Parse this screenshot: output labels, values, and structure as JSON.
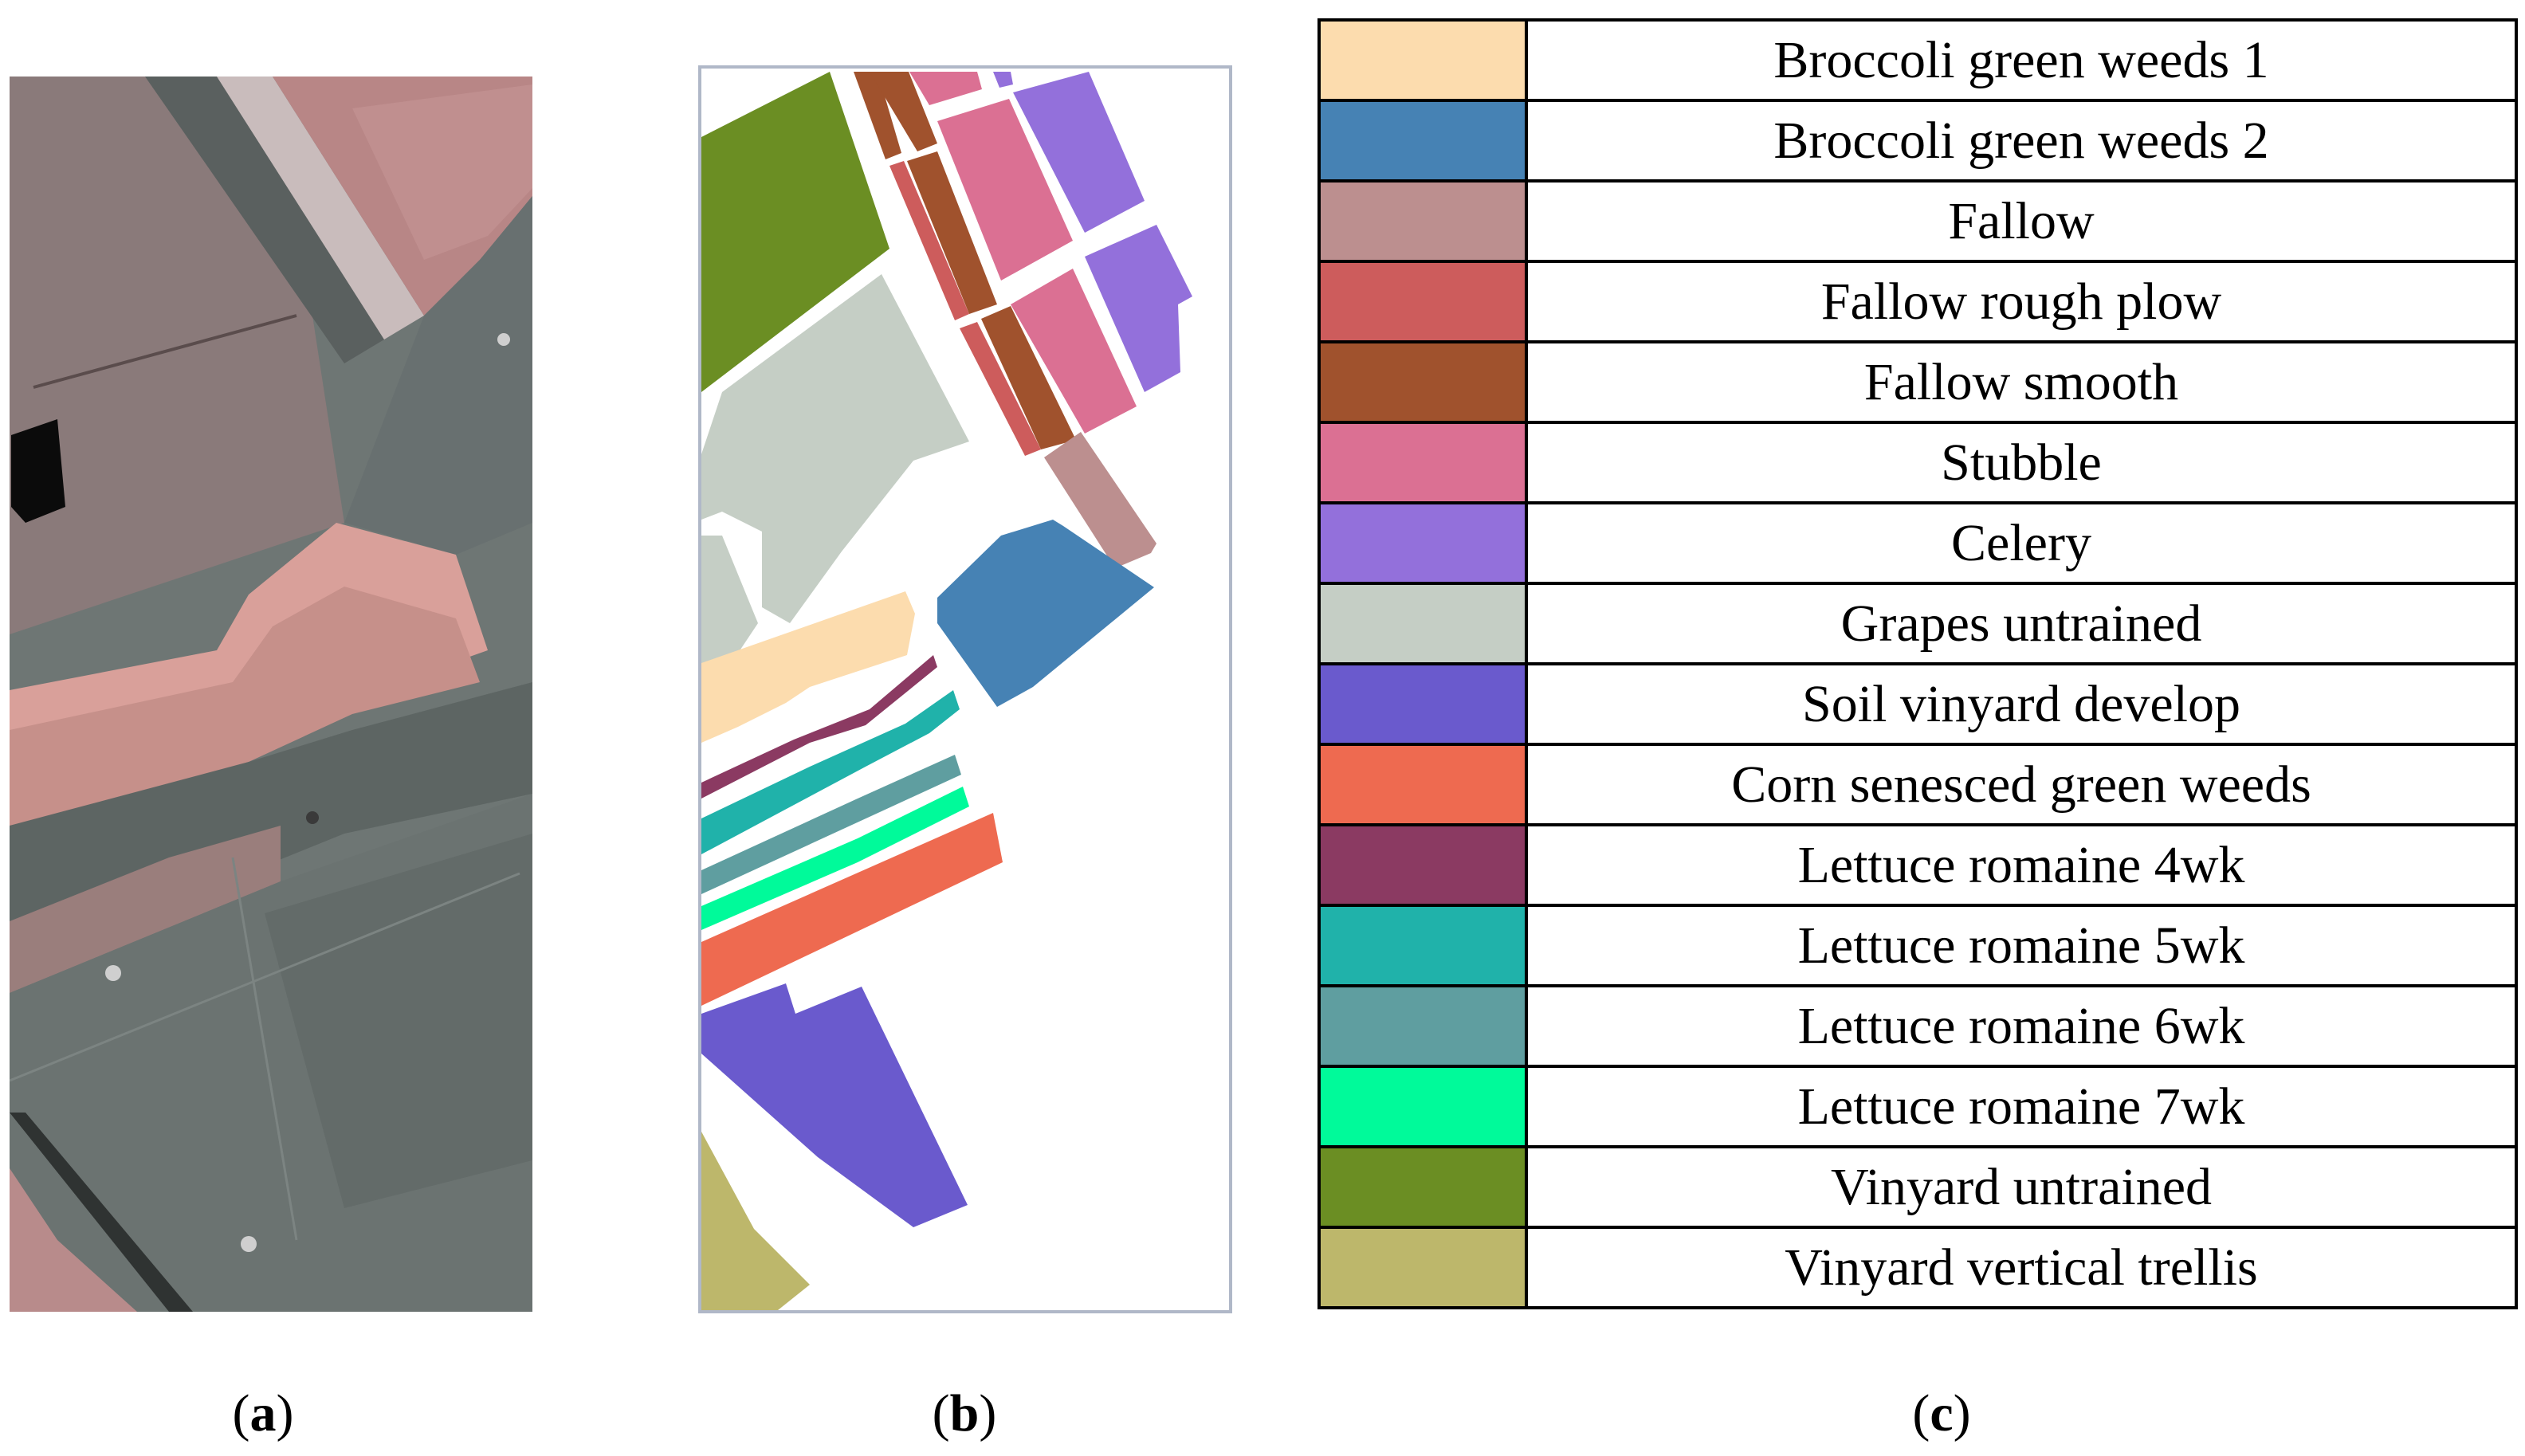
{
  "captions": {
    "a_open": "(",
    "a_letter": "a",
    "a_close": ")",
    "b_open": "(",
    "b_letter": "b",
    "b_close": ")",
    "c_open": "(",
    "c_letter": "c",
    "c_close": ")"
  },
  "legend": [
    {
      "label": "Broccoli green weeds 1",
      "color": "#FCDCAE"
    },
    {
      "label": "Broccoli green weeds 2",
      "color": "#4682B4"
    },
    {
      "label": "Fallow",
      "color": "#BC8F8F"
    },
    {
      "label": "Fallow rough plow",
      "color": "#CD5C5C"
    },
    {
      "label": "Fallow smooth",
      "color": "#A0522D"
    },
    {
      "label": "Stubble",
      "color": "#DB7093"
    },
    {
      "label": "Celery",
      "color": "#9370DB"
    },
    {
      "label": "Grapes untrained",
      "color": "#C5CEC5"
    },
    {
      "label": "Soil vinyard develop",
      "color": "#6A5ACD"
    },
    {
      "label": "Corn senesced green weeds",
      "color": "#EE6A50"
    },
    {
      "label": "Lettuce romaine 4wk",
      "color": "#8B3A62"
    },
    {
      "label": "Lettuce romaine 5wk",
      "color": "#20B2AA"
    },
    {
      "label": "Lettuce romaine 6wk",
      "color": "#5F9EA0"
    },
    {
      "label": "Lettuce romaine 7wk",
      "color": "#00FA9A"
    },
    {
      "label": "Vinyard untrained",
      "color": "#6B8E23"
    },
    {
      "label": "Vinyard vertical trellis",
      "color": "#BDB76B"
    }
  ]
}
